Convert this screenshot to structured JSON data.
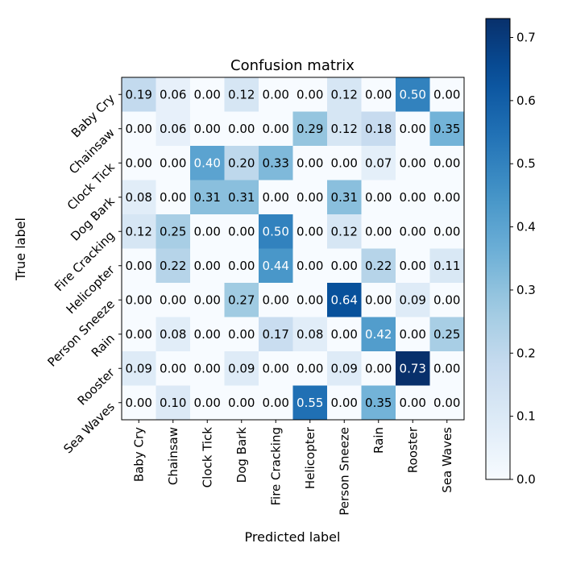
{
  "chart_data": {
    "type": "heatmap",
    "title": "Confusion matrix",
    "xlabel": "Predicted label",
    "ylabel": "True label",
    "x_categories": [
      "Baby Cry",
      "Chainsaw",
      "Clock Tick",
      "Dog Bark",
      "Fire Cracking",
      "Helicopter",
      "Person Sneeze",
      "Rain",
      "Rooster",
      "Sea Waves"
    ],
    "y_categories": [
      "Baby Cry",
      "Chainsaw",
      "Clock Tick",
      "Dog Bark",
      "Fire Cracking",
      "Helicopter",
      "Person Sneeze",
      "Rain",
      "Rooster",
      "Sea Waves"
    ],
    "values": [
      [
        0.19,
        0.06,
        0.0,
        0.12,
        0.0,
        0.0,
        0.12,
        0.0,
        0.5,
        0.0
      ],
      [
        0.0,
        0.06,
        0.0,
        0.0,
        0.0,
        0.29,
        0.12,
        0.18,
        0.0,
        0.35
      ],
      [
        0.0,
        0.0,
        0.4,
        0.2,
        0.33,
        0.0,
        0.0,
        0.07,
        0.0,
        0.0
      ],
      [
        0.08,
        0.0,
        0.31,
        0.31,
        0.0,
        0.0,
        0.31,
        0.0,
        0.0,
        0.0
      ],
      [
        0.12,
        0.25,
        0.0,
        0.0,
        0.5,
        0.0,
        0.12,
        0.0,
        0.0,
        0.0
      ],
      [
        0.0,
        0.22,
        0.0,
        0.0,
        0.44,
        0.0,
        0.0,
        0.22,
        0.0,
        0.11
      ],
      [
        0.0,
        0.0,
        0.0,
        0.27,
        0.0,
        0.0,
        0.64,
        0.0,
        0.09,
        0.0
      ],
      [
        0.0,
        0.08,
        0.0,
        0.0,
        0.17,
        0.08,
        0.0,
        0.42,
        0.0,
        0.25
      ],
      [
        0.09,
        0.0,
        0.0,
        0.09,
        0.0,
        0.0,
        0.09,
        0.0,
        0.73,
        0.0
      ],
      [
        0.0,
        0.1,
        0.0,
        0.0,
        0.0,
        0.55,
        0.0,
        0.35,
        0.0,
        0.0
      ]
    ],
    "colormap": "Blues",
    "colorbar": {
      "range": [
        0.0,
        0.73
      ],
      "ticks": [
        "0.0",
        "0.1",
        "0.2",
        "0.3",
        "0.4",
        "0.5",
        "0.6",
        "0.7"
      ]
    },
    "grid": false,
    "legend": "colorbar-right"
  }
}
